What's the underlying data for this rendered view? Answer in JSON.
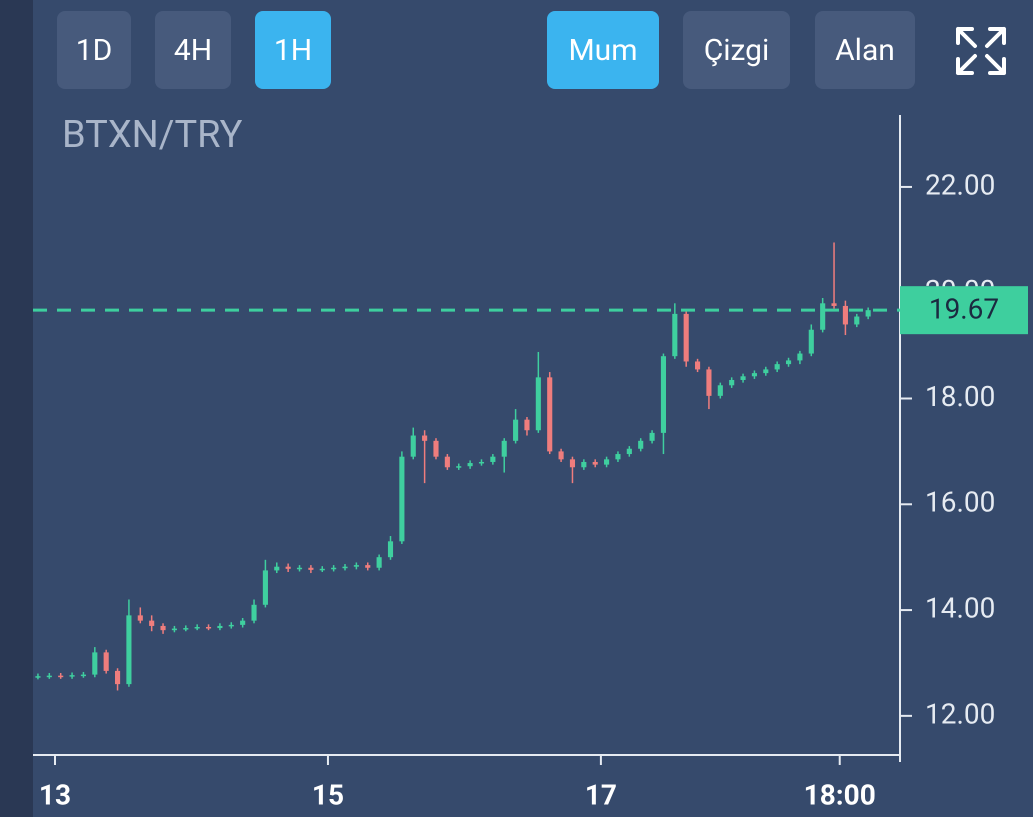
{
  "toolbar": {
    "intervals": [
      "1D",
      "4H",
      "1H"
    ],
    "active_interval": 2,
    "chart_types": [
      "Mum",
      "Çizgi",
      "Alan"
    ],
    "active_chart_type": 0
  },
  "chart_data": {
    "type": "candlestick",
    "title": "BTXN/TRY",
    "x": [
      -3,
      -1,
      1,
      3,
      5,
      7,
      9,
      11,
      13,
      15,
      17,
      19,
      21,
      23,
      25,
      27,
      29,
      31,
      33,
      35,
      37,
      39,
      41,
      43,
      45,
      47,
      49,
      51,
      53,
      55,
      57,
      59,
      61,
      63,
      65,
      67,
      69,
      71,
      73,
      75,
      77,
      79,
      81,
      83,
      85,
      87,
      89,
      91,
      93,
      95,
      97,
      99,
      101,
      103,
      105,
      107,
      109,
      111,
      113,
      115,
      117,
      119,
      121,
      123,
      125,
      127,
      129,
      131,
      133,
      135,
      137,
      139,
      141,
      143
    ],
    "open": [
      12.74,
      12.75,
      12.76,
      12.75,
      12.77,
      12.78,
      13.2,
      12.85,
      12.6,
      13.9,
      13.8,
      13.7,
      13.62,
      13.65,
      13.66,
      13.68,
      13.66,
      13.7,
      13.72,
      13.8,
      14.1,
      14.75,
      14.82,
      14.78,
      14.8,
      14.76,
      14.78,
      14.8,
      14.82,
      14.85,
      14.8,
      15.0,
      15.3,
      16.9,
      17.3,
      17.2,
      16.9,
      16.7,
      16.72,
      16.78,
      16.8,
      16.9,
      17.2,
      17.6,
      17.4,
      18.4,
      17.0,
      16.85,
      16.7,
      16.8,
      16.75,
      16.85,
      16.95,
      17.05,
      17.2,
      17.35,
      18.8,
      19.6,
      18.7,
      18.55,
      18.05,
      18.25,
      18.35,
      18.42,
      18.48,
      18.55,
      18.65,
      18.72,
      18.85,
      19.3,
      19.8,
      19.75,
      19.4,
      19.55
    ],
    "high": [
      12.8,
      12.81,
      12.81,
      12.82,
      12.83,
      13.3,
      13.25,
      12.9,
      14.2,
      14.05,
      13.9,
      13.75,
      13.7,
      13.71,
      13.73,
      13.73,
      13.75,
      13.77,
      13.85,
      14.2,
      14.95,
      14.9,
      14.88,
      14.85,
      14.85,
      14.83,
      14.85,
      14.87,
      14.9,
      14.9,
      15.05,
      15.4,
      17.0,
      17.45,
      17.4,
      17.25,
      16.95,
      16.77,
      16.83,
      16.85,
      16.95,
      17.25,
      17.8,
      17.65,
      18.88,
      18.5,
      17.05,
      16.9,
      16.85,
      16.85,
      16.9,
      17.0,
      17.1,
      17.25,
      17.4,
      18.85,
      19.8,
      19.65,
      18.75,
      18.6,
      18.3,
      18.4,
      18.47,
      18.53,
      18.6,
      18.7,
      18.77,
      18.9,
      19.4,
      19.9,
      20.95,
      19.85,
      19.6,
      19.72
    ],
    "low": [
      12.69,
      12.7,
      12.7,
      12.7,
      12.72,
      12.73,
      12.8,
      12.48,
      12.55,
      13.75,
      13.6,
      13.55,
      13.58,
      13.6,
      13.62,
      13.62,
      13.62,
      13.65,
      13.67,
      13.75,
      14.05,
      14.7,
      14.72,
      14.73,
      14.7,
      14.72,
      14.73,
      14.75,
      14.77,
      14.75,
      14.75,
      14.95,
      15.25,
      16.85,
      16.4,
      16.85,
      16.65,
      16.65,
      16.67,
      16.73,
      16.75,
      16.6,
      17.15,
      17.3,
      17.35,
      16.95,
      16.8,
      16.4,
      16.65,
      16.7,
      16.7,
      16.8,
      16.9,
      17.0,
      17.15,
      16.95,
      18.75,
      18.6,
      18.5,
      17.8,
      18.0,
      18.2,
      18.3,
      18.37,
      18.43,
      18.5,
      18.6,
      18.65,
      18.8,
      19.25,
      19.7,
      19.2,
      19.35,
      19.5
    ],
    "close": [
      12.75,
      12.76,
      12.75,
      12.77,
      12.78,
      13.2,
      12.85,
      12.6,
      13.9,
      13.8,
      13.7,
      13.62,
      13.65,
      13.66,
      13.68,
      13.66,
      13.7,
      13.72,
      13.8,
      14.1,
      14.75,
      14.82,
      14.78,
      14.8,
      14.76,
      14.78,
      14.8,
      14.82,
      14.85,
      14.8,
      15.0,
      15.3,
      16.9,
      17.3,
      17.2,
      16.9,
      16.7,
      16.72,
      16.78,
      16.8,
      16.9,
      17.2,
      17.6,
      17.4,
      18.4,
      17.0,
      16.85,
      16.7,
      16.8,
      16.75,
      16.85,
      16.95,
      17.05,
      17.2,
      17.35,
      18.8,
      19.6,
      18.7,
      18.55,
      18.05,
      18.25,
      18.35,
      18.42,
      18.48,
      18.55,
      18.65,
      18.72,
      18.85,
      19.3,
      19.8,
      19.75,
      19.4,
      19.55,
      19.67
    ],
    "up_color": "#3fcf9f",
    "down_color": "#ef7d7d",
    "last_value": 19.67,
    "last_color": "#3ecf9e",
    "xlim": [
      -3.87,
      148.6
    ],
    "xticks": [
      {
        "value": 0,
        "label": "13"
      },
      {
        "value": 48,
        "label": "15"
      },
      {
        "value": 96,
        "label": "17"
      },
      {
        "value": 138,
        "label": "18:00"
      }
    ],
    "ylim": [
      11.26,
      23.36
    ],
    "yticks": [
      {
        "value": 12,
        "label": "12.00"
      },
      {
        "value": 14,
        "label": "14.00"
      },
      {
        "value": 16,
        "label": "16.00"
      },
      {
        "value": 18,
        "label": "18.00"
      },
      {
        "value": 20,
        "label": "20.00"
      },
      {
        "value": 22,
        "label": "22.00"
      }
    ]
  }
}
